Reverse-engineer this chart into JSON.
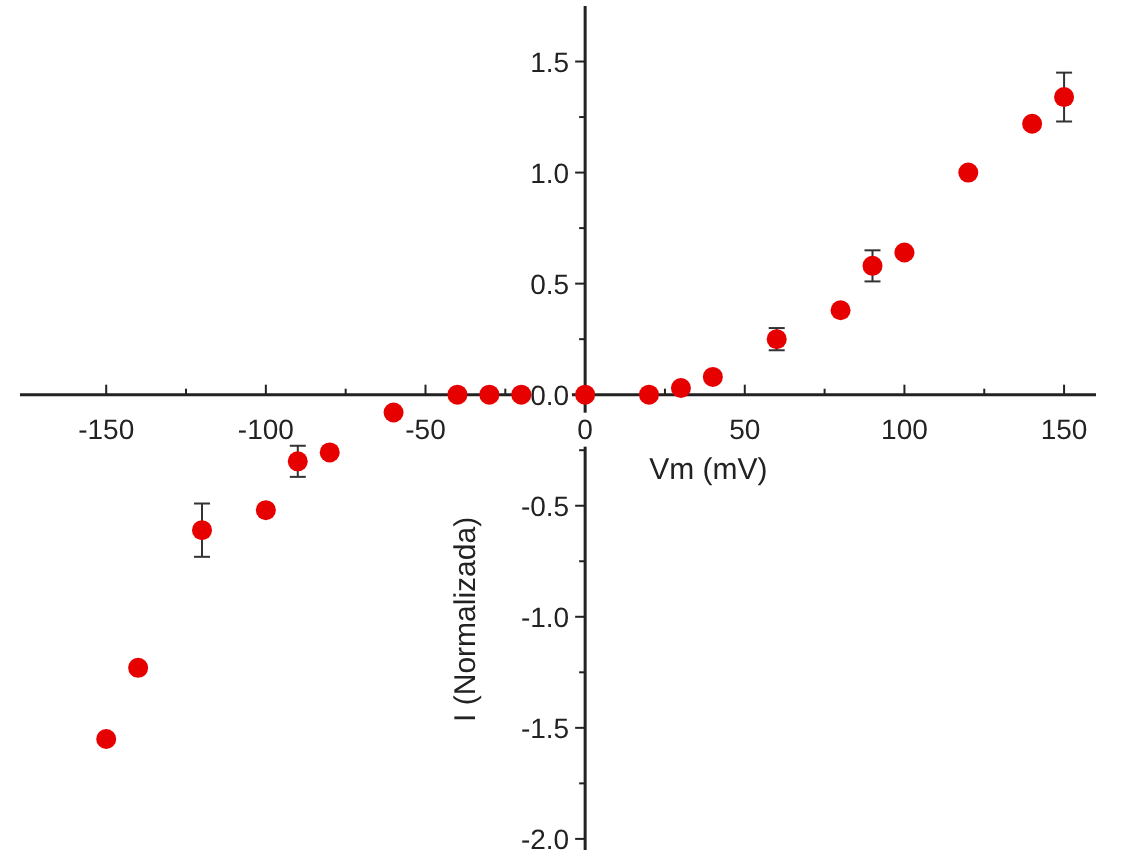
{
  "chart_data": {
    "type": "scatter",
    "xlabel": "Vm (mV)",
    "ylabel": "I (Normalizada)",
    "x": [
      -150,
      -140,
      -120,
      -100,
      -90,
      -80,
      -60,
      -40,
      -30,
      -20,
      0,
      20,
      30,
      40,
      60,
      80,
      90,
      100,
      120,
      140,
      150
    ],
    "series": [
      {
        "color": "#e60000",
        "values": [
          -1.55,
          -1.23,
          -0.61,
          -0.52,
          -0.3,
          -0.26,
          -0.08,
          0,
          0,
          0,
          0,
          0,
          0.03,
          0.08,
          0.25,
          0.38,
          0.58,
          0.64,
          1.0,
          1.22,
          1.34
        ],
        "errors": [
          null,
          null,
          0.12,
          null,
          0.07,
          null,
          null,
          null,
          null,
          null,
          null,
          null,
          null,
          null,
          0.05,
          null,
          0.07,
          null,
          null,
          null,
          0.11
        ]
      }
    ],
    "marker": "circle",
    "xlim": [
      -177,
      160
    ],
    "ylim": [
      -2.05,
      1.75
    ],
    "xticks": [
      -150,
      {
        "value": -125,
        "label": null
      },
      -100,
      {
        "value": -75,
        "label": null
      },
      -50,
      {
        "value": -25,
        "label": null
      },
      0,
      {
        "value": 25,
        "label": null
      },
      50,
      {
        "value": 75,
        "label": null
      },
      100,
      {
        "value": 125,
        "label": null
      },
      150
    ],
    "yticks": [
      {
        "value": -2.0,
        "label": "-2.0"
      },
      {
        "value": -1.75,
        "label": null
      },
      -1.5,
      {
        "value": -1.25,
        "label": null
      },
      {
        "value": -1.0,
        "label": "-1.0"
      },
      {
        "value": -0.75,
        "label": null
      },
      -0.5,
      {
        "value": -0.25,
        "label": null
      },
      {
        "value": 0,
        "label": "0.0"
      },
      {
        "value": 0.25,
        "label": null
      },
      0.5,
      {
        "value": 0.75,
        "label": null
      },
      {
        "value": 1.0,
        "label": "1.0"
      },
      {
        "value": 1.25,
        "label": null
      },
      1.5
    ],
    "grid": false
  }
}
